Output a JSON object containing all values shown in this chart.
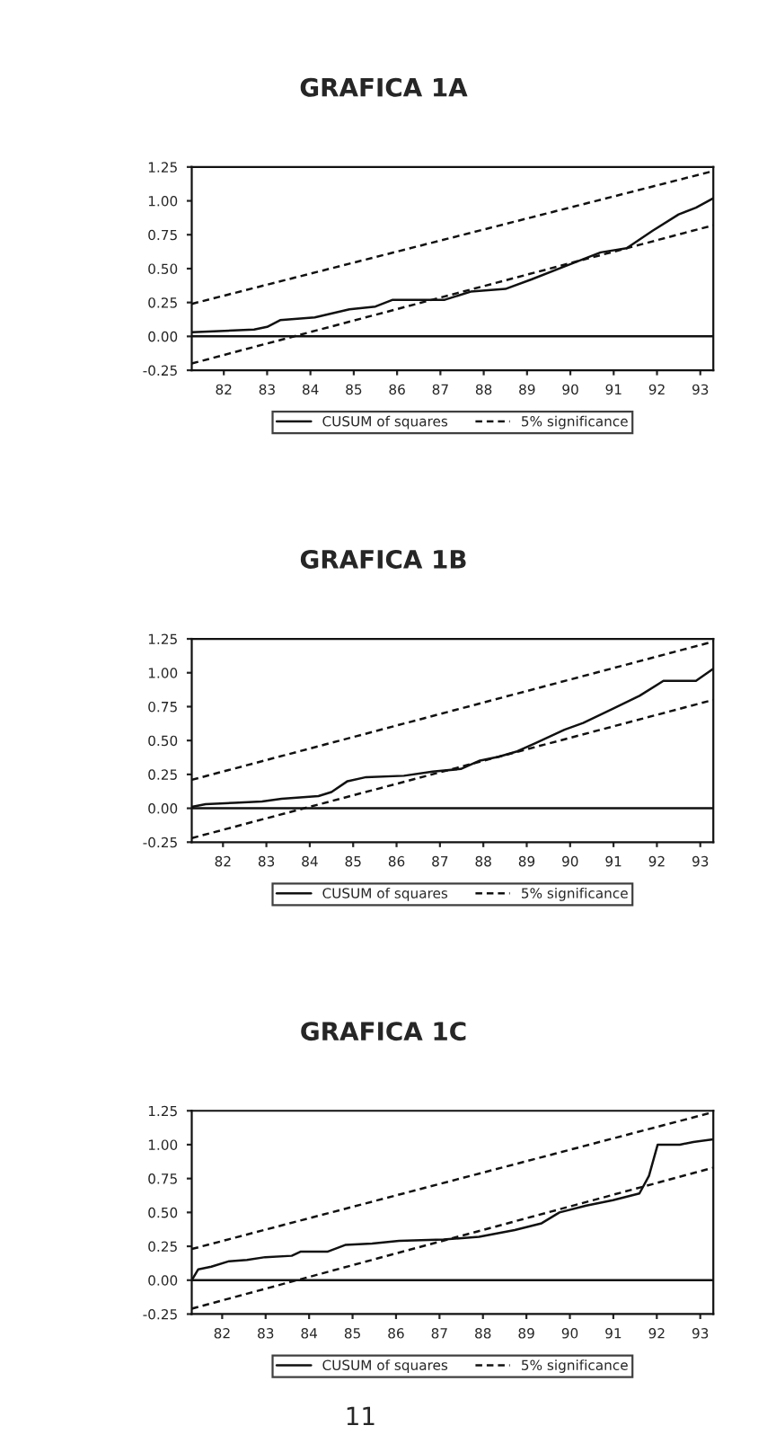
{
  "chart_data": [
    {
      "type": "line",
      "title": "GRAFICA 1A",
      "x": [
        81.26,
        82.7,
        83.0,
        83.3,
        84.1,
        84.9,
        85.5,
        85.9,
        87.1,
        87.7,
        88.5,
        89.1,
        89.9,
        90.7,
        91.3,
        91.9,
        92.5,
        92.9,
        93.3
      ],
      "series": [
        {
          "name": "CUSUM of squares",
          "color": "#111111",
          "line_style": "solid",
          "values": [
            0.03,
            0.05,
            0.07,
            0.12,
            0.14,
            0.2,
            0.22,
            0.27,
            0.27,
            0.33,
            0.35,
            0.42,
            0.52,
            0.62,
            0.65,
            0.78,
            0.9,
            0.95,
            1.02
          ]
        },
        {
          "name": "5% significance",
          "color": "#111111",
          "line_style": "dashed",
          "x": [
            81.26,
            93.3
          ],
          "values": [
            0.24,
            1.22
          ]
        },
        {
          "color": "#111111",
          "line_style": "dashed",
          "x": [
            81.26,
            93.3
          ],
          "values": [
            -0.2,
            0.82
          ]
        }
      ],
      "xlim": [
        81.26,
        93.3
      ],
      "xticks": [
        82,
        83,
        84,
        85,
        86,
        87,
        88,
        89,
        90,
        91,
        92,
        93
      ],
      "ylim": [
        -0.25,
        1.25
      ],
      "yticks": [
        {
          "value": -0.25,
          "label": "-0.25"
        },
        {
          "value": 0,
          "label": "0.00"
        },
        {
          "value": 0.25,
          "label": "0.25"
        },
        {
          "value": 0.5,
          "label": "0.50"
        },
        {
          "value": 0.75,
          "label": "0.75"
        },
        {
          "value": 1,
          "label": "1.00"
        },
        {
          "value": 1.25,
          "label": "1.25"
        }
      ],
      "ref_lines": [
        {
          "axis": "y",
          "value": 0,
          "color": "#111111",
          "line_style": "solid"
        }
      ],
      "grid": false,
      "legend": "bottom"
    },
    {
      "type": "line",
      "title": "GRAFICA 1B",
      "x": [
        81.28,
        81.6,
        82.26,
        82.9,
        83.35,
        84.2,
        84.5,
        84.87,
        85.3,
        86.17,
        86.83,
        87.48,
        87.9,
        88.35,
        88.78,
        89.2,
        89.87,
        90.3,
        90.96,
        91.6,
        92.15,
        92.9,
        93.3
      ],
      "series": [
        {
          "name": "CUSUM of squares",
          "color": "#111111",
          "line_style": "solid",
          "values": [
            0.01,
            0.03,
            0.04,
            0.05,
            0.07,
            0.09,
            0.12,
            0.2,
            0.23,
            0.24,
            0.27,
            0.29,
            0.35,
            0.38,
            0.42,
            0.48,
            0.58,
            0.63,
            0.73,
            0.83,
            0.94,
            0.94,
            1.03
          ]
        },
        {
          "name": "5% significance",
          "color": "#111111",
          "line_style": "dashed",
          "x": [
            81.28,
            93.3
          ],
          "values": [
            0.21,
            1.23
          ]
        },
        {
          "color": "#111111",
          "line_style": "dashed",
          "x": [
            81.28,
            93.3
          ],
          "values": [
            -0.22,
            0.8
          ]
        }
      ],
      "xlim": [
        81.28,
        93.3
      ],
      "xticks": [
        82,
        83,
        84,
        85,
        86,
        87,
        88,
        89,
        90,
        91,
        92,
        93
      ],
      "ylim": [
        -0.25,
        1.25
      ],
      "yticks": [
        {
          "value": -0.25,
          "label": "-0.25"
        },
        {
          "value": 0,
          "label": "0.00"
        },
        {
          "value": 0.25,
          "label": "0.25"
        },
        {
          "value": 0.5,
          "label": "0.50"
        },
        {
          "value": 0.75,
          "label": "0.75"
        },
        {
          "value": 1,
          "label": "1.00"
        },
        {
          "value": 1.25,
          "label": "1.25"
        }
      ],
      "ref_lines": [
        {
          "axis": "y",
          "value": 0,
          "color": "#111111",
          "line_style": "solid"
        }
      ],
      "grid": false,
      "legend": "bottom"
    },
    {
      "type": "line",
      "title": "GRAFICA 1C",
      "annotations": [
        "11"
      ],
      "x": [
        81.3,
        81.45,
        81.75,
        82.16,
        82.57,
        82.99,
        83.6,
        83.8,
        84.42,
        84.83,
        85.45,
        86.07,
        87.09,
        87.91,
        88.73,
        89.35,
        89.76,
        90.38,
        90.99,
        91.6,
        91.82,
        92.02,
        92.53,
        92.84,
        93.3
      ],
      "series": [
        {
          "name": "CUSUM of squares",
          "color": "#111111",
          "line_style": "solid",
          "values": [
            0.0,
            0.08,
            0.1,
            0.14,
            0.15,
            0.17,
            0.18,
            0.21,
            0.21,
            0.26,
            0.27,
            0.29,
            0.3,
            0.32,
            0.37,
            0.42,
            0.5,
            0.55,
            0.59,
            0.64,
            0.77,
            1.0,
            1.0,
            1.02,
            1.04
          ]
        },
        {
          "name": "5% significance",
          "color": "#111111",
          "line_style": "dashed",
          "x": [
            81.3,
            93.3
          ],
          "values": [
            0.23,
            1.24
          ]
        },
        {
          "color": "#111111",
          "line_style": "dashed",
          "x": [
            81.3,
            93.3
          ],
          "values": [
            -0.21,
            0.83
          ]
        }
      ],
      "xlim": [
        81.3,
        93.3
      ],
      "xticks": [
        82,
        83,
        84,
        85,
        86,
        87,
        88,
        89,
        90,
        91,
        92,
        93
      ],
      "ylim": [
        -0.25,
        1.25
      ],
      "yticks": [
        {
          "value": -0.25,
          "label": "-0.25"
        },
        {
          "value": 0,
          "label": "0.00"
        },
        {
          "value": 0.25,
          "label": "0.25"
        },
        {
          "value": 0.5,
          "label": "0.50"
        },
        {
          "value": 0.75,
          "label": "0.75"
        },
        {
          "value": 1,
          "label": "1.00"
        },
        {
          "value": 1.25,
          "label": "1.25"
        }
      ],
      "ref_lines": [
        {
          "axis": "y",
          "value": 0,
          "color": "#111111",
          "line_style": "solid"
        }
      ],
      "grid": false,
      "legend": "bottom"
    }
  ]
}
